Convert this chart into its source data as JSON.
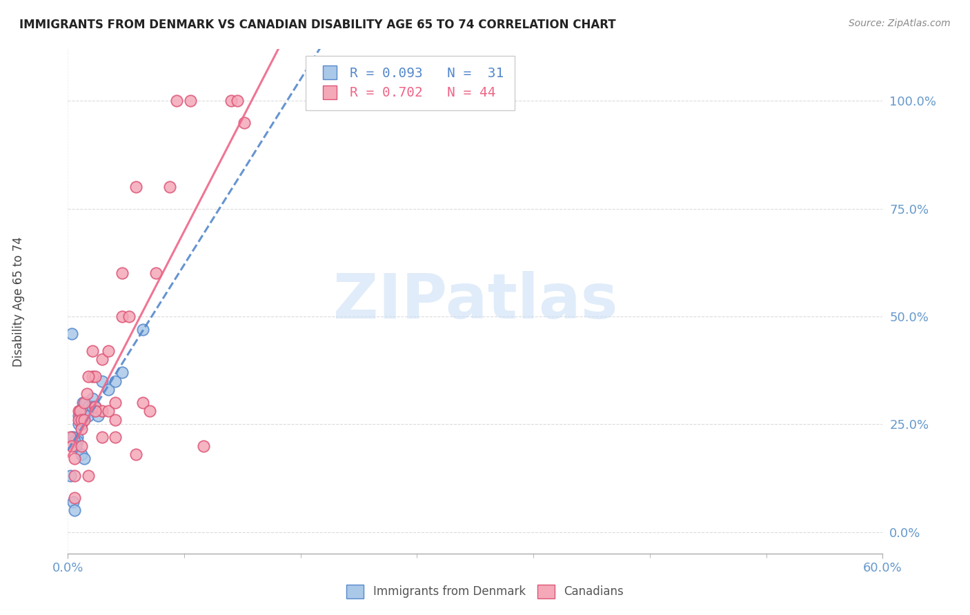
{
  "title": "IMMIGRANTS FROM DENMARK VS CANADIAN DISABILITY AGE 65 TO 74 CORRELATION CHART",
  "source": "Source: ZipAtlas.com",
  "ylabel": "Disability Age 65 to 74",
  "xlim": [
    0,
    60
  ],
  "ylim": [
    -5,
    112
  ],
  "ytick_values": [
    0,
    25,
    50,
    75,
    100
  ],
  "ytick_labels": [
    "0.0%",
    "25.0%",
    "50.0%",
    "75.0%",
    "100.0%"
  ],
  "xtick_values": [
    0,
    60
  ],
  "xtick_labels": [
    "0.0%",
    "60.0%"
  ],
  "legend_label1": "Immigrants from Denmark",
  "legend_label2": "Canadians",
  "legend_entry1": "R = 0.093   N =  31",
  "legend_entry2": "R = 0.702   N = 44",
  "denmark_color": "#aac8e8",
  "canada_color": "#f4a8b8",
  "denmark_edge": "#5588cc",
  "canada_edge": "#dd5577",
  "trendline_dk_color": "#5588cc",
  "trendline_ca_color": "#ee6688",
  "watermark": "ZIPatlas",
  "watermark_color": "#cce0f5",
  "denmark_x": [
    0.2,
    0.4,
    0.5,
    0.7,
    0.7,
    0.8,
    0.8,
    1.0,
    1.0,
    1.1,
    1.2,
    1.2,
    1.3,
    1.5,
    1.5,
    1.8,
    1.8,
    2.0,
    2.2,
    2.5,
    3.0,
    3.5,
    4.0,
    5.5,
    0.3,
    0.3,
    0.4,
    0.5,
    0.6,
    1.0,
    1.2
  ],
  "denmark_y": [
    13,
    7,
    5,
    22,
    21,
    27,
    25,
    27,
    25,
    30,
    29,
    27,
    30,
    29,
    27,
    31,
    29,
    29,
    27,
    35,
    33,
    35,
    37,
    47,
    46,
    22,
    22,
    21,
    20,
    18,
    17
  ],
  "canada_x": [
    0.2,
    0.3,
    0.5,
    0.5,
    0.8,
    0.8,
    0.9,
    1.0,
    1.0,
    1.2,
    1.2,
    1.4,
    1.5,
    1.8,
    1.8,
    2.0,
    2.0,
    2.5,
    2.5,
    3.0,
    3.5,
    3.5,
    4.0,
    4.5,
    5.0,
    5.5,
    6.0,
    6.5,
    7.5,
    10.0,
    12.0,
    12.5,
    13.0,
    0.5,
    1.0,
    1.5,
    2.0,
    2.5,
    3.0,
    3.5,
    4.0,
    5.0,
    8.0,
    9.0
  ],
  "canada_y": [
    22,
    20,
    17,
    13,
    28,
    26,
    28,
    26,
    20,
    30,
    26,
    32,
    13,
    42,
    36,
    36,
    29,
    28,
    22,
    28,
    22,
    30,
    50,
    50,
    18,
    30,
    28,
    60,
    80,
    20,
    100,
    100,
    95,
    8,
    24,
    36,
    28,
    40,
    42,
    26,
    60,
    80,
    100,
    100
  ]
}
